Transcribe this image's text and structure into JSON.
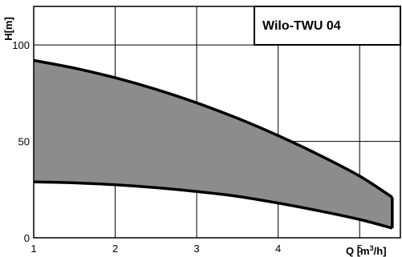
{
  "chart_data": {
    "type": "area",
    "title": "Wilo-TWU 04",
    "xlabel_main": "Q [m",
    "xlabel_sup": "3",
    "xlabel_tail": "/h]",
    "ylabel": "H[m]",
    "xlim": [
      1,
      5.5
    ],
    "ylim": [
      0,
      120
    ],
    "x_ticks": [
      "1",
      "2",
      "3",
      "4",
      "5"
    ],
    "y_ticks": [
      "0",
      "50",
      "100"
    ],
    "grid": true,
    "series": [
      {
        "role": "upper",
        "x": [
          1.0,
          1.5,
          2.0,
          2.5,
          3.0,
          3.5,
          4.0,
          4.5,
          5.0,
          5.4
        ],
        "y": [
          92,
          88,
          83,
          77,
          70,
          62,
          53,
          43,
          32,
          21
        ]
      },
      {
        "role": "lower",
        "x": [
          1.0,
          1.5,
          2.0,
          2.5,
          3.0,
          3.5,
          4.0,
          4.5,
          5.0,
          5.4
        ],
        "y": [
          29,
          28.5,
          27.5,
          26,
          24,
          21.5,
          18,
          14,
          9.5,
          5
        ]
      }
    ],
    "colors": {
      "fill": "#8c8c8c",
      "stroke": "#000000",
      "background": "#ffffff"
    }
  }
}
